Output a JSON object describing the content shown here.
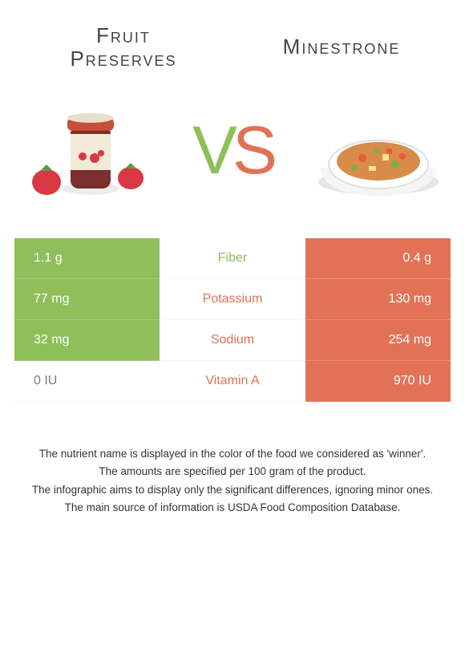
{
  "titles": {
    "left_line1": "Fruit",
    "left_line2": "Preserves",
    "right": "Minestrone"
  },
  "vs": {
    "v": "V",
    "s": "S"
  },
  "colors": {
    "green": "#8fbf5a",
    "orange": "#e27256",
    "text": "#333333",
    "mid_border": "#f3f3f3"
  },
  "rows": [
    {
      "left": "1.1 g",
      "label": "Fiber",
      "right": "0.4 g",
      "left_bg": "green",
      "right_bg": "orange",
      "winner": "green"
    },
    {
      "left": "77 mg",
      "label": "Potassium",
      "right": "130 mg",
      "left_bg": "green",
      "right_bg": "orange",
      "winner": "orange"
    },
    {
      "left": "32 mg",
      "label": "Sodium",
      "right": "254 mg",
      "left_bg": "green",
      "right_bg": "orange",
      "winner": "orange"
    },
    {
      "left": "0 IU",
      "label": "Vitamin A",
      "right": "970 IU",
      "left_bg": "white",
      "right_bg": "orange",
      "winner": "orange"
    }
  ],
  "footer": {
    "l1": "The nutrient name is displayed in the color of the food we considered as 'winner'.",
    "l2": "The amounts are specified per 100 gram of the product.",
    "l3": "The infographic aims to display only the significant differences, ignoring minor ones.",
    "l4": "The main source of information is USDA Food Composition Database."
  }
}
